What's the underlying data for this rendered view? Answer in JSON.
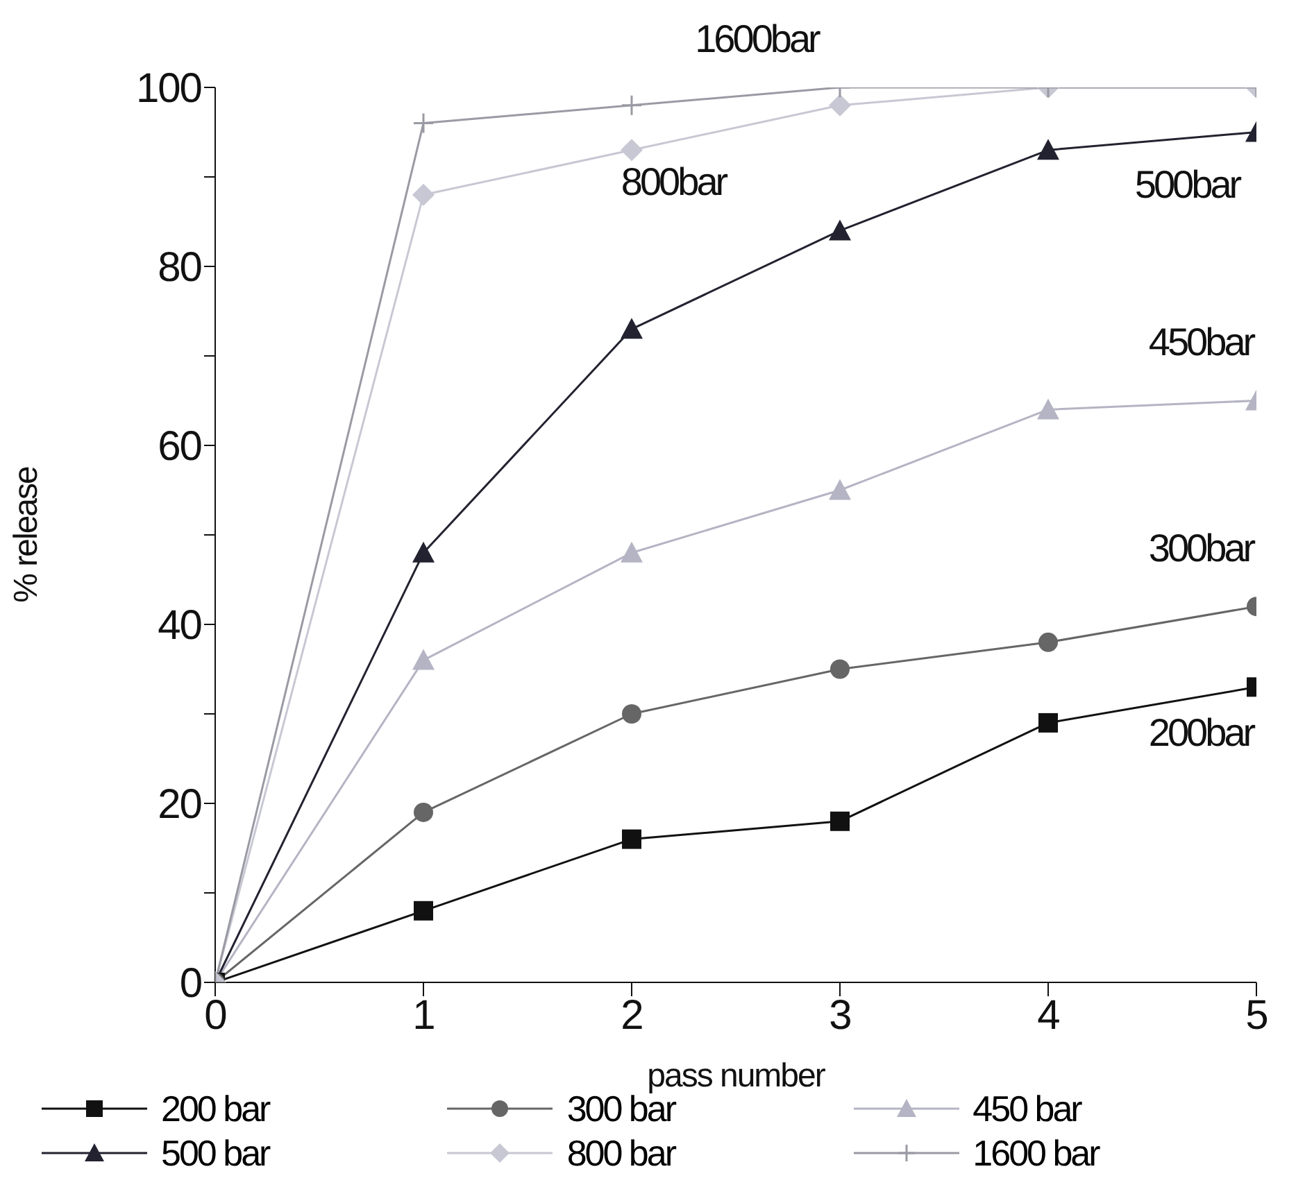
{
  "chart_data": {
    "type": "line",
    "xlabel": "pass number",
    "ylabel": "% release",
    "x": [
      0,
      1,
      2,
      3,
      4,
      5
    ],
    "series": [
      {
        "name": "200 bar",
        "color": "#111111",
        "marker": "square",
        "values": [
          0,
          8,
          16,
          18,
          29,
          33
        ]
      },
      {
        "name": "300 bar",
        "color": "#666666",
        "marker": "circle",
        "values": [
          0,
          19,
          30,
          35,
          38,
          42
        ]
      },
      {
        "name": "450 bar",
        "color": "#b4b4c4",
        "marker": "triangle",
        "values": [
          0,
          36,
          48,
          55,
          64,
          65
        ]
      },
      {
        "name": "500 bar",
        "color": "#222230",
        "marker": "triangle",
        "values": [
          0,
          48,
          73,
          84,
          93,
          95
        ]
      },
      {
        "name": "800 bar",
        "color": "#c8c8d4",
        "marker": "diamond",
        "values": [
          0,
          88,
          93,
          98,
          100,
          100
        ]
      },
      {
        "name": "1600 bar",
        "color": "#9a9aa4",
        "marker": "cross",
        "values": [
          0,
          96,
          98,
          100,
          100,
          100
        ]
      }
    ],
    "xlim": [
      0,
      5
    ],
    "xticks": [
      0,
      1,
      2,
      3,
      4,
      5
    ],
    "ylim": [
      0,
      100
    ],
    "yticks": [
      0,
      {
        "value": 10,
        "label": null
      },
      20,
      {
        "value": 30,
        "label": null
      },
      40,
      {
        "value": 50,
        "label": null
      },
      60,
      {
        "value": 70,
        "label": null
      },
      80,
      {
        "value": 90,
        "label": null
      },
      100
    ],
    "annotations": [
      {
        "text": "1600bar",
        "x": 3,
        "y": 100
      },
      {
        "text": "800bar",
        "x": 2,
        "y": 93
      },
      {
        "text": "500bar",
        "x": 5,
        "y": 95
      },
      {
        "text": "450bar",
        "x": 5,
        "y": 65
      },
      {
        "text": "300bar",
        "x": 5,
        "y": 42
      },
      {
        "text": "200bar",
        "x": 5,
        "y": 33
      }
    ],
    "grid": false,
    "legend": "bottom"
  }
}
